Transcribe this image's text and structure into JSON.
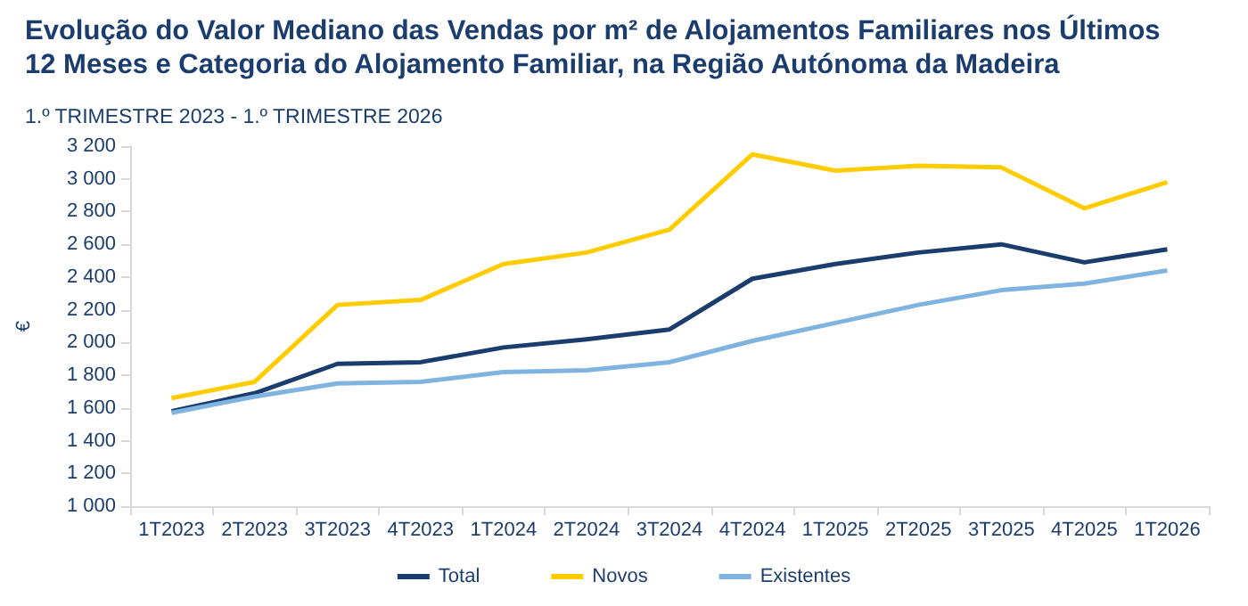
{
  "chart_data": {
    "type": "line",
    "title": "Evolução do Valor Mediano das Vendas por m² de Alojamentos Familiares nos Últimos 12 Meses e Categoria do Alojamento Familiar, na Região Autónoma da Madeira",
    "subtitle": "1.º TRIMESTRE 2023 - 1.º TRIMESTRE 2026",
    "ylabel": "€",
    "categories": [
      "1T2023",
      "2T2023",
      "3T2023",
      "4T2023",
      "1T2024",
      "2T2024",
      "3T2024",
      "4T2024",
      "1T2025",
      "2T2025",
      "3T2025",
      "4T2025",
      "1T2026"
    ],
    "series": [
      {
        "name": "Total",
        "color": "#1b3d6e",
        "values": [
          1580,
          1690,
          1870,
          1880,
          1970,
          2020,
          2080,
          2390,
          2480,
          2550,
          2600,
          2490,
          2570
        ]
      },
      {
        "name": "Novos",
        "color": "#ffcc00",
        "values": [
          1660,
          1760,
          2230,
          2260,
          2480,
          2550,
          2690,
          3150,
          3050,
          3080,
          3070,
          2820,
          2980
        ]
      },
      {
        "name": "Existentes",
        "color": "#80b4e0",
        "values": [
          1570,
          1670,
          1750,
          1760,
          1820,
          1830,
          1880,
          2010,
          2120,
          2230,
          2320,
          2360,
          2440
        ]
      }
    ],
    "ylim": [
      1000,
      3200
    ],
    "yticks": [
      {
        "value": 1000,
        "label": "1 000"
      },
      {
        "value": 1200,
        "label": "1 200"
      },
      {
        "value": 1400,
        "label": "1 400"
      },
      {
        "value": 1600,
        "label": "1 600"
      },
      {
        "value": 1800,
        "label": "1 800"
      },
      {
        "value": 2000,
        "label": "2 000"
      },
      {
        "value": 2200,
        "label": "2 200"
      },
      {
        "value": 2400,
        "label": "2 400"
      },
      {
        "value": 2600,
        "label": "2 600"
      },
      {
        "value": 2800,
        "label": "2 800"
      },
      {
        "value": 3000,
        "label": "3 000"
      },
      {
        "value": 3200,
        "label": "3 200"
      }
    ],
    "grid": false,
    "legend": "bottom",
    "marker": "none",
    "line_style": "solid"
  }
}
